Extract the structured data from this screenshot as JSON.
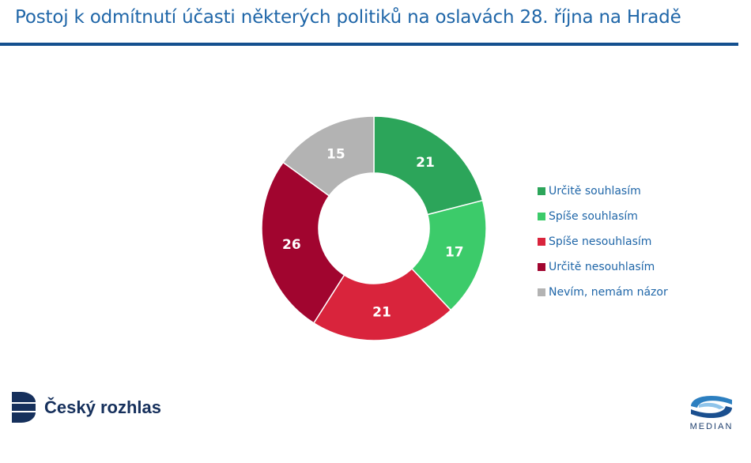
{
  "header": {
    "title": "Postoj k odmítnutí účasti některých politiků na oslavách 28. října na Hradě"
  },
  "chart_data": {
    "type": "donut",
    "title": "",
    "categories": [
      "Určitě souhlasím",
      "Spíše souhlasím",
      "Spíše nesouhlasím",
      "Určitě nesouhlasím",
      "Nevím, nemám názor"
    ],
    "values": [
      21,
      17,
      21,
      26,
      15
    ],
    "colors": [
      "#2ca55a",
      "#3ccb6a",
      "#d9243c",
      "#a1052f",
      "#b3b3b3"
    ],
    "data_labels": [
      "21",
      "17",
      "21",
      "26",
      "15"
    ],
    "start": "12 o'clock, clockwise",
    "legend_position": "right"
  },
  "footer": {
    "left_brand": "Český rozhlas",
    "right_brand": "MEDIAN"
  }
}
